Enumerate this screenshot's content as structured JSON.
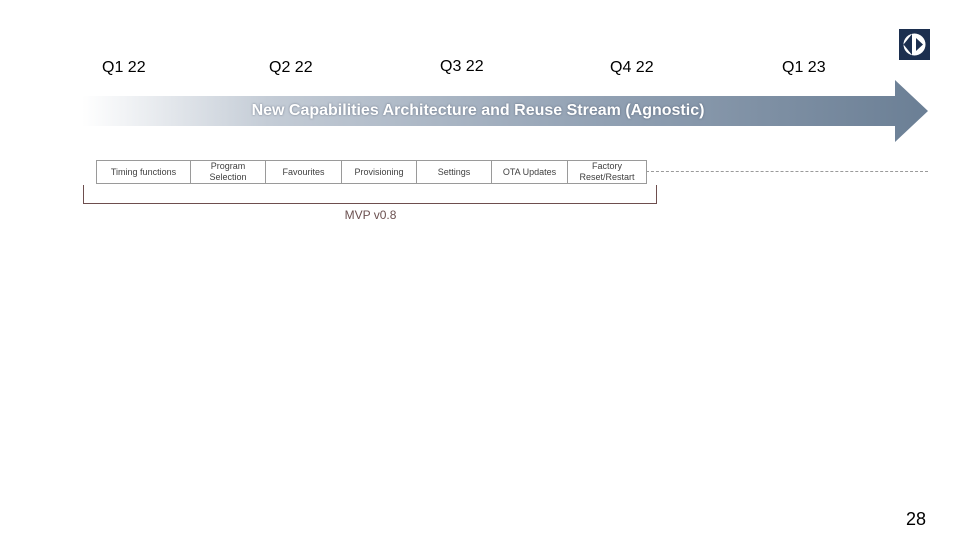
{
  "slide": {
    "quarters": [
      "Q1 22",
      "Q2 22",
      "Q3 22",
      "Q4 22",
      "Q1 23"
    ],
    "arrow_label": "New Capabilities Architecture and Reuse Stream (Agnostic)",
    "features": [
      "Timing functions",
      "Program\nSelection",
      "Favourites",
      "Provisioning",
      "Settings",
      "OTA Updates",
      "Factory\nReset/Restart"
    ],
    "milestone_label": "MVP v0.8",
    "page_number": "28"
  },
  "logo": {
    "icon": "electrolux-logo-icon"
  },
  "colors": {
    "logo_bg": "#1c2f4f",
    "arrow_end": "#6b7f95",
    "bracket": "#6e4e4e",
    "box_border": "#9a9a9a"
  }
}
